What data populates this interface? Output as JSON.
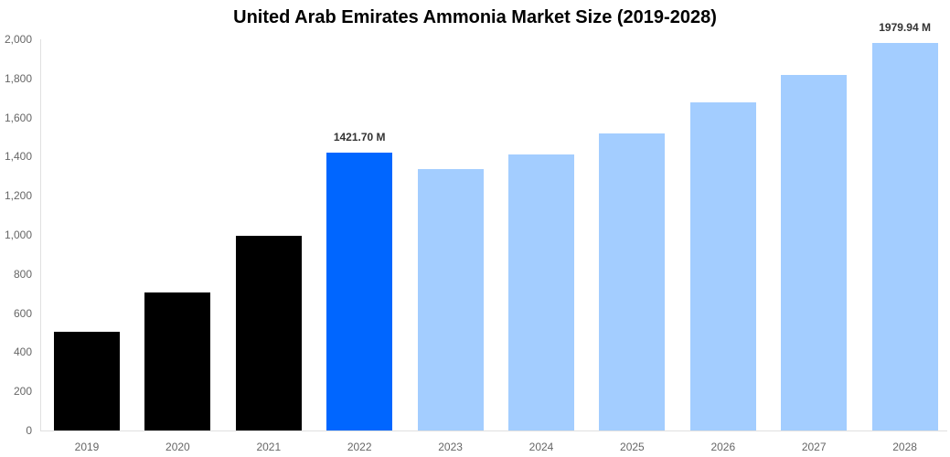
{
  "chart_data": {
    "type": "bar",
    "title": "United Arab Emirates Ammonia Market Size (2019-2028)",
    "xlabel": "",
    "ylabel": "",
    "categories": [
      "2019",
      "2020",
      "2021",
      "2022",
      "2023",
      "2024",
      "2025",
      "2026",
      "2027",
      "2028"
    ],
    "values": [
      505,
      706,
      995,
      1421.7,
      1336,
      1411,
      1519,
      1678,
      1818,
      1979.94
    ],
    "bar_colors": [
      "#000000",
      "#000000",
      "#000000",
      "#0066ff",
      "#a3cdff",
      "#a3cdff",
      "#a3cdff",
      "#a3cdff",
      "#a3cdff",
      "#a3cdff"
    ],
    "data_labels": [
      {
        "category": "2022",
        "text": "1421.70 M"
      },
      {
        "category": "2028",
        "text": "1979.94 M"
      }
    ],
    "ylim": [
      0,
      2000
    ],
    "yticks": [
      "0",
      "200",
      "400",
      "600",
      "800",
      "1,000",
      "1,200",
      "1,400",
      "1,600",
      "1,800",
      "2,000"
    ],
    "grid": false,
    "legend": null
  }
}
